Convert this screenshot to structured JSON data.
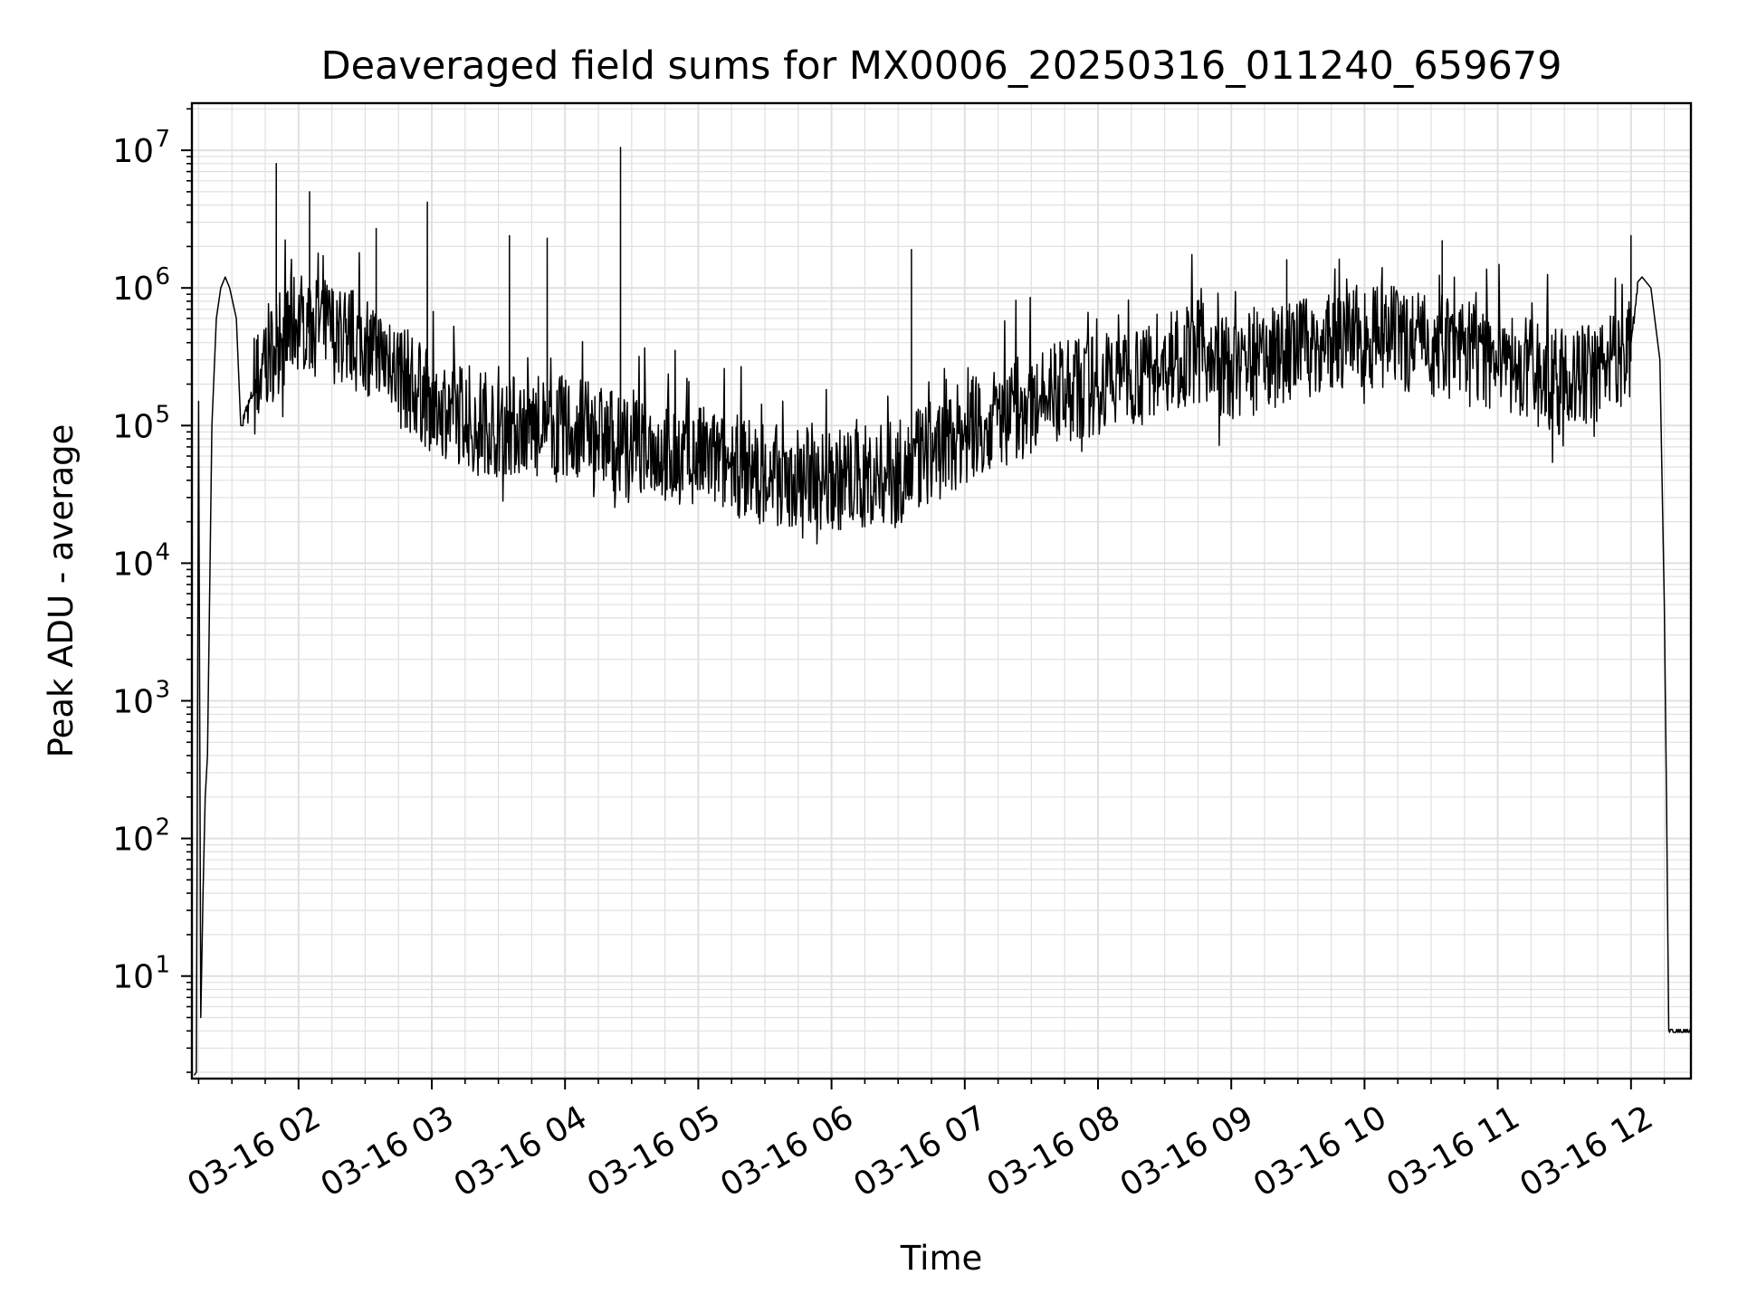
{
  "chart_data": {
    "type": "line",
    "title": "Deaveraged field sums for MX0006_20250316_011240_659679",
    "xlabel": "Time",
    "ylabel": "Peak ADU - average",
    "x_scale": "time",
    "y_scale": "log",
    "xlim": [
      "2025-03-16 01:12",
      "2025-03-16 12:27"
    ],
    "ylim": [
      1.8,
      22000000
    ],
    "grid": "major-and-minor",
    "legend": "none",
    "line_color": "#000000",
    "grid_color": "#e0e0e0",
    "x_ticks": [
      {
        "label": "03-16 02",
        "value": "2025-03-16 02:00"
      },
      {
        "label": "03-16 03",
        "value": "2025-03-16 03:00"
      },
      {
        "label": "03-16 04",
        "value": "2025-03-16 04:00"
      },
      {
        "label": "03-16 05",
        "value": "2025-03-16 05:00"
      },
      {
        "label": "03-16 06",
        "value": "2025-03-16 06:00"
      },
      {
        "label": "03-16 07",
        "value": "2025-03-16 07:00"
      },
      {
        "label": "03-16 08",
        "value": "2025-03-16 08:00"
      },
      {
        "label": "03-16 09",
        "value": "2025-03-16 09:00"
      },
      {
        "label": "03-16 10",
        "value": "2025-03-16 10:00"
      },
      {
        "label": "03-16 11",
        "value": "2025-03-16 11:00"
      },
      {
        "label": "03-16 12",
        "value": "2025-03-16 12:00"
      }
    ],
    "y_ticks": [
      {
        "base": "10",
        "exp": "1",
        "value": 10
      },
      {
        "base": "10",
        "exp": "2",
        "value": 100
      },
      {
        "base": "10",
        "exp": "3",
        "value": 1000
      },
      {
        "base": "10",
        "exp": "4",
        "value": 10000
      },
      {
        "base": "10",
        "exp": "5",
        "value": 100000
      },
      {
        "base": "10",
        "exp": "6",
        "value": 1000000
      },
      {
        "base": "10",
        "exp": "7",
        "value": 10000000
      }
    ],
    "series": [
      {
        "trend": {
          "x": [
            "2025-03-16 01:14",
            "2025-03-16 01:15",
            "2025-03-16 01:16",
            "2025-03-16 01:17",
            "2025-03-16 01:18",
            "2025-03-16 01:19",
            "2025-03-16 01:21",
            "2025-03-16 01:23",
            "2025-03-16 01:25",
            "2025-03-16 01:27",
            "2025-03-16 01:29",
            "2025-03-16 01:32",
            "2025-03-16 01:34",
            "2025-03-16 01:45",
            "2025-03-16 02:00",
            "2025-03-16 02:30",
            "2025-03-16 03:00",
            "2025-03-16 03:30",
            "2025-03-16 04:00",
            "2025-03-16 04:30",
            "2025-03-16 05:00",
            "2025-03-16 05:30",
            "2025-03-16 06:00",
            "2025-03-16 06:30",
            "2025-03-16 07:00",
            "2025-03-16 07:30",
            "2025-03-16 08:00",
            "2025-03-16 08:30",
            "2025-03-16 08:45",
            "2025-03-16 09:00",
            "2025-03-16 09:30",
            "2025-03-16 10:00",
            "2025-03-16 10:30",
            "2025-03-16 11:00",
            "2025-03-16 11:30",
            "2025-03-16 11:55",
            "2025-03-16 12:00",
            "2025-03-16 12:03",
            "2025-03-16 12:05",
            "2025-03-16 12:09",
            "2025-03-16 12:13",
            "2025-03-16 12:15",
            "2025-03-16 12:16",
            "2025-03-16 12:17",
            "2025-03-16 12:27"
          ],
          "y": [
            2,
            150000,
            5,
            40,
            200,
            400,
            100000,
            600000,
            1000000,
            1200000,
            1000000,
            600000,
            100000,
            300000,
            600000,
            400000,
            150000,
            100000,
            100000,
            70000,
            60000,
            45000,
            40000,
            45000,
            90000,
            150000,
            200000,
            300000,
            350000,
            250000,
            350000,
            450000,
            400000,
            300000,
            200000,
            300000,
            400000,
            1100000,
            1200000,
            1000000,
            300000,
            5000,
            200,
            4,
            4
          ]
        },
        "noise": "log-amplitude spikes between ~0.3× and ~3× of trend"
      }
    ],
    "spikes": [
      {
        "x": "2025-03-16 01:50",
        "y": 8000000
      },
      {
        "x": "2025-03-16 02:05",
        "y": 5000000
      },
      {
        "x": "2025-03-16 02:35",
        "y": 2700000
      },
      {
        "x": "2025-03-16 02:58",
        "y": 4200000
      },
      {
        "x": "2025-03-16 03:35",
        "y": 2400000
      },
      {
        "x": "2025-03-16 03:52",
        "y": 2300000
      },
      {
        "x": "2025-03-16 04:25",
        "y": 10500000
      },
      {
        "x": "2025-03-16 06:36",
        "y": 1900000
      },
      {
        "x": "2025-03-16 09:25",
        "y": 1600000
      },
      {
        "x": "2025-03-16 10:35",
        "y": 2200000
      },
      {
        "x": "2025-03-16 12:00",
        "y": 2400000
      }
    ]
  }
}
